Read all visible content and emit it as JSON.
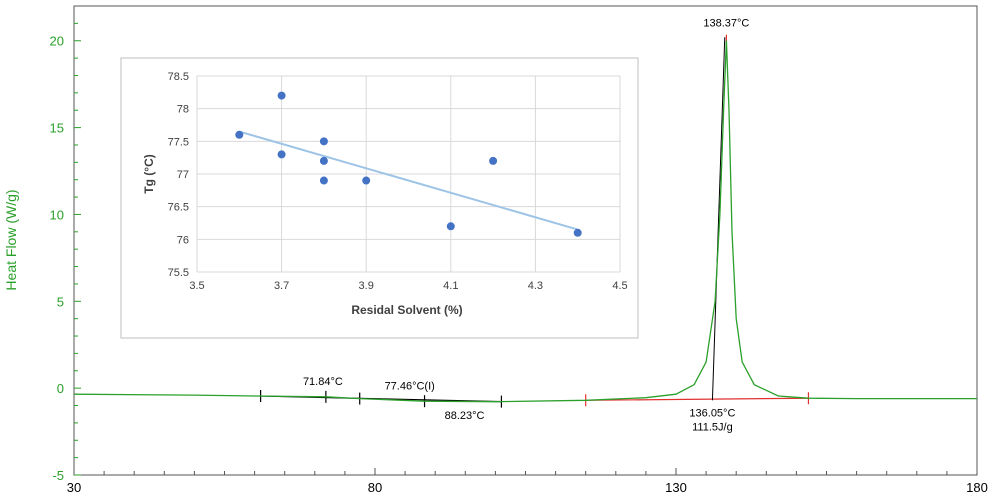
{
  "chart_data": [
    {
      "type": "line",
      "ylabel": "Heat Flow (W/g)",
      "xlabel": "",
      "xlim": [
        30,
        180
      ],
      "ylim": [
        -5,
        22
      ],
      "x_ticks": [
        30,
        80,
        130,
        180
      ],
      "y_ticks": [
        -5,
        0,
        5,
        10,
        15,
        20
      ],
      "series": [
        {
          "x": [
            30,
            50,
            60,
            71.84,
            77.46,
            88.23,
            100,
            115,
            125,
            130,
            133,
            135,
            136.5,
            137.3,
            137.9,
            138.37,
            138.8,
            139.3,
            140,
            141,
            143,
            147,
            152,
            160,
            170,
            180
          ],
          "y": [
            -0.35,
            -0.4,
            -0.45,
            -0.5,
            -0.6,
            -0.75,
            -0.78,
            -0.7,
            -0.55,
            -0.35,
            0.2,
            1.5,
            5,
            10,
            16,
            20,
            16,
            9,
            4,
            1.5,
            0.2,
            -0.45,
            -0.58,
            -0.6,
            -0.6,
            -0.6
          ]
        }
      ],
      "annotations": [
        {
          "text": "138.37°C",
          "x": 138.37,
          "y": 20
        },
        {
          "text": "71.84°C",
          "x": 71.84,
          "y": -0.5
        },
        {
          "text": "77.46°C(I)",
          "x": 77.46,
          "y": -0.6
        },
        {
          "text": "88.23°C",
          "x": 88.23,
          "y": -0.75
        },
        {
          "text": "136.05°C",
          "x": 136.05,
          "y": -0.7
        },
        {
          "text": "111.5J/g",
          "x": 136.05,
          "y": -0.7
        }
      ],
      "glass_transition_markers_x": [
        61,
        71.84,
        77.46,
        88.23,
        101
      ],
      "melting_integration_limits_x": [
        115,
        152
      ],
      "colors": {
        "curve": "#2aa02a",
        "axis": "#2aa02a",
        "marker_tg": "#000000",
        "marker_melt": "#e03030"
      }
    },
    {
      "type": "scatter",
      "xlabel": "Residal Solvent (%)",
      "ylabel": "Tg (°C)",
      "xlim": [
        3.5,
        4.5
      ],
      "ylim": [
        75.5,
        78.5
      ],
      "x_ticks": [
        "3.5",
        "3.7",
        "3.9",
        "4.1",
        "4.3",
        "4.5"
      ],
      "y_ticks": [
        "75.5",
        "76",
        "76.5",
        "77",
        "77.5",
        "78",
        "78.5"
      ],
      "grid": true,
      "x": [
        3.6,
        3.7,
        3.7,
        3.8,
        3.8,
        3.8,
        3.9,
        4.1,
        4.2,
        4.4
      ],
      "y": [
        77.6,
        78.2,
        77.3,
        77.5,
        77.2,
        76.9,
        76.9,
        76.2,
        77.2,
        76.1
      ],
      "trendline": {
        "x": [
          3.6,
          4.4
        ],
        "y": [
          77.65,
          76.15
        ]
      },
      "colors": {
        "points": "#4472c4",
        "trendline": "#9dc3e6"
      }
    }
  ]
}
